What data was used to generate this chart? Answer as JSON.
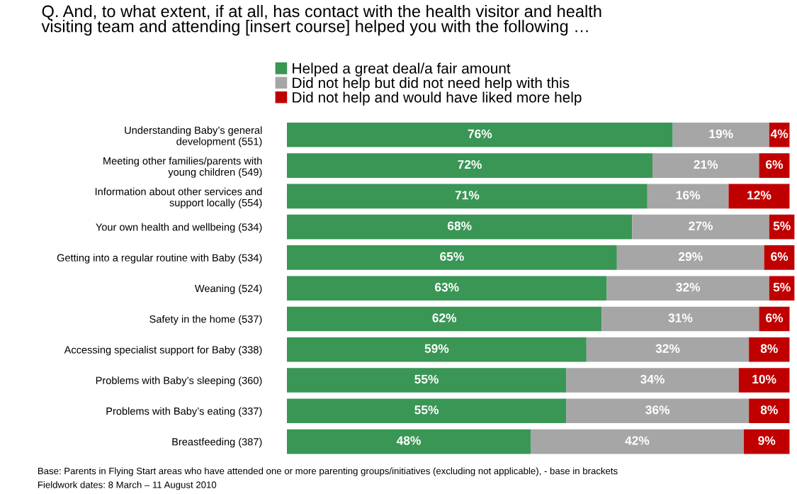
{
  "chart_data": {
    "type": "bar",
    "orientation": "horizontal",
    "stacked": true,
    "title": "Q. And, to what extent, if at all, has contact with the health visitor and health\nvisiting team and attending [insert course] helped you with the following …",
    "categories": [
      "Understanding Baby’s general\ndevelopment (551)",
      "Meeting other families/parents with\nyoung children (549)",
      "Information about other services and\nsupport locally (554)",
      "Your own health and wellbeing (534)",
      "Getting into a regular routine with Baby (534)",
      "Weaning (524)",
      "Safety in the home (537)",
      "Accessing specialist support for Baby (338)",
      "Problems with Baby’s sleeping (360)",
      "Problems with Baby’s eating (337)",
      "Breastfeeding (387)"
    ],
    "series": [
      {
        "name": "Helped a great deal/a fair amount",
        "color": "#3a9655",
        "values": [
          76,
          72,
          71,
          68,
          65,
          63,
          62,
          59,
          55,
          55,
          48
        ],
        "value_labels": [
          "76%",
          "72%",
          "71%",
          "68%",
          "65%",
          "63%",
          "62%",
          "59%",
          "55%",
          "55%",
          "48%"
        ]
      },
      {
        "name": "Did not help but did not need help with this",
        "color": "#a6a6a6",
        "values": [
          19,
          21,
          16,
          27,
          29,
          32,
          31,
          32,
          34,
          36,
          42
        ],
        "value_labels": [
          "19%",
          "21%",
          "16%",
          "27%",
          "29%",
          "32%",
          "31%",
          "32%",
          "34%",
          "36%",
          "42%"
        ]
      },
      {
        "name": "Did not help and would have liked more help",
        "color": "#c00000",
        "values": [
          4,
          6,
          12,
          5,
          6,
          5,
          6,
          8,
          10,
          8,
          9
        ],
        "value_labels": [
          "4%",
          "6%",
          "12%",
          "5%",
          "6%",
          "5%",
          "6%",
          "8%",
          "10%",
          "8%",
          "9%"
        ]
      }
    ],
    "tick_labels": "y",
    "legend": "top",
    "grid": false,
    "annotations": [
      "Base: Parents in Flying Start areas who have attended one or more parenting groups/initiatives (excluding not applicable), - base in brackets",
      "Fieldwork dates: 8 March – 11 August 2010"
    ]
  }
}
